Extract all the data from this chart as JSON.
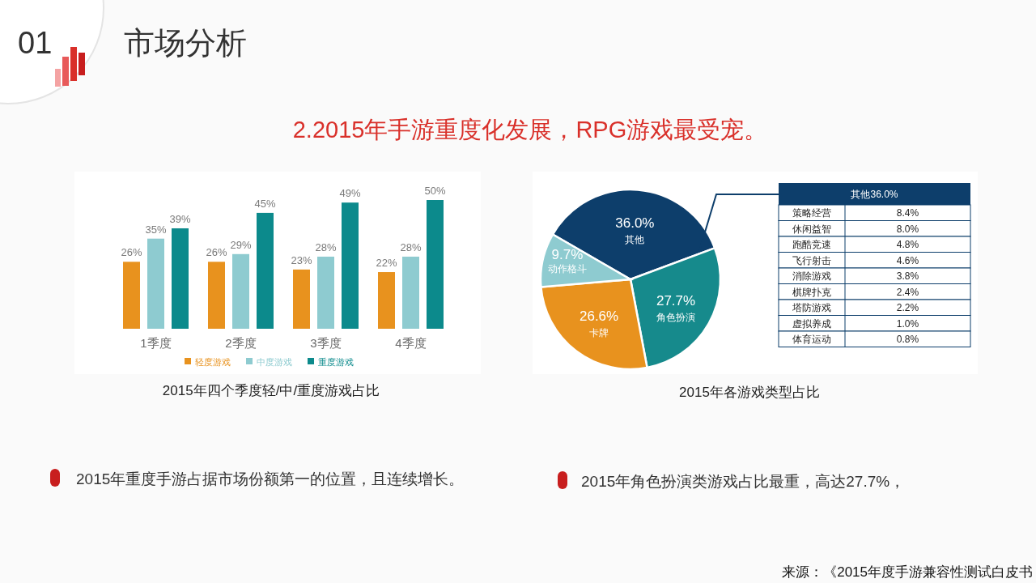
{
  "chart_data": [
    {
      "type": "bar",
      "title": "2015年四个季度轻/中/重度游戏占比",
      "categories": [
        "1季度",
        "2季度",
        "3季度",
        "4季度"
      ],
      "legend": "bottom",
      "ylim": [
        0,
        50
      ],
      "series": [
        {
          "name": "轻度游戏",
          "color": "#e8921e",
          "values": [
            26,
            26,
            23,
            22
          ],
          "value_labels": [
            "26%",
            "26%",
            "23%",
            "22%"
          ]
        },
        {
          "name": "中度游戏",
          "color": "#8ecbd0",
          "values": [
            35,
            29,
            28,
            28
          ],
          "value_labels": [
            "35%",
            "29%",
            "28%",
            "28%"
          ]
        },
        {
          "name": "重度游戏",
          "color": "#0c8a8c",
          "values": [
            39,
            45,
            49,
            50
          ],
          "value_labels": [
            "39%",
            "45%",
            "49%",
            "50%"
          ]
        }
      ],
      "annotations": [
        "01",
        "市场分析",
        "2.2015年手游重度化发展，RPG游戏最受宠。",
        "2015年重度手游占据市场份额第一的位置，且连续增长。"
      ]
    },
    {
      "type": "pie",
      "title": "2015年各游戏类型占比",
      "categories": [
        "其他",
        "角色扮演",
        "卡牌",
        "动作格斗"
      ],
      "values": [
        36.0,
        27.7,
        26.6,
        9.7
      ],
      "colors": [
        "#0d3e6b",
        "#168a8c",
        "#e8921e",
        "#8ecbd0"
      ],
      "value_labels": [
        "36.0%",
        "27.7%",
        "26.6%",
        "9.7%"
      ],
      "annotations": [
        "2015年角色扮演类游戏占比最重，高达27.7%，",
        "来源：《2015年度手游兼容性测试白皮书"
      ]
    },
    {
      "type": "other",
      "title": "其他36.0%",
      "categories": [
        "策略经营",
        "休闲益智",
        "跑酷竞速",
        "飞行射击",
        "消除游戏",
        "棋牌扑克",
        "塔防游戏",
        "虚拟养成",
        "体育运动"
      ],
      "value_labels": [
        "8.4%",
        "8.0%",
        "4.8%",
        "4.6%",
        "3.8%",
        "2.4%",
        "2.2%",
        "1.0%",
        "0.8%"
      ]
    }
  ]
}
